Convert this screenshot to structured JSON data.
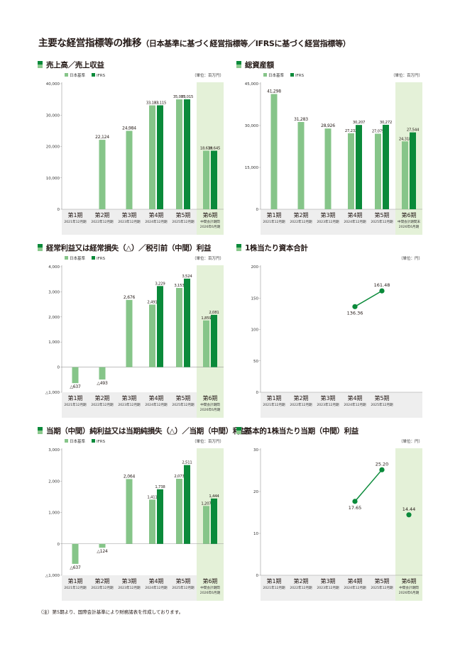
{
  "page": {
    "title": "主要な経営指標等の推移",
    "subtitle": "（日本基準に基づく経営指標等／IFRSに基づく経営指標等）",
    "footnote": "（注）第5期より、国際会計基準により財務諸表を作成しております。"
  },
  "colors": {
    "jgaap": "#86c589",
    "ifrs": "#0a8a3a",
    "forecast_bg": "#e4f1d8",
    "axis_band": "#eeeeee"
  },
  "chart_data": [
    {
      "id": "sales",
      "type": "bar",
      "title": "売上高／売上収益",
      "unit": "（単位：百万円）",
      "legend": [
        "日本基準",
        "IFRS"
      ],
      "categories": [
        {
          "label": "第1期",
          "sub": "2021年12月期"
        },
        {
          "label": "第2期",
          "sub": "2022年12月期"
        },
        {
          "label": "第3期",
          "sub": "2023年12月期"
        },
        {
          "label": "第4期",
          "sub": "2024年12月期"
        },
        {
          "label": "第5期",
          "sub": "2025年12月期"
        },
        {
          "label": "第6期",
          "sub": "中間会計期間",
          "sub2": "2026年6月期"
        }
      ],
      "series": [
        {
          "name": "日本基準",
          "values": [
            null,
            22124,
            24984,
            33103,
            35003,
            18639
          ]
        },
        {
          "name": "IFRS",
          "values": [
            null,
            null,
            null,
            33115,
            35015,
            18645
          ]
        }
      ],
      "value_labels": [
        [
          null,
          "22,124",
          "24,984",
          "33,103",
          "35,003",
          "18,639"
        ],
        [
          null,
          null,
          null,
          "33,115",
          "35,015",
          "18,645"
        ]
      ],
      "yticks": [
        0,
        10000,
        20000,
        30000,
        40000
      ],
      "ytick_labels": [
        "0",
        "10,000",
        "20,000",
        "30,000",
        "40,000"
      ],
      "ylim": [
        0,
        40000
      ],
      "forecast_index": 5
    },
    {
      "id": "assets",
      "type": "bar",
      "title": "総資産額",
      "unit": "（単位：百万円）",
      "legend": [
        "日本基準",
        "IFRS"
      ],
      "categories": [
        {
          "label": "第1期",
          "sub": "2021年12月期"
        },
        {
          "label": "第2期",
          "sub": "2022年12月期"
        },
        {
          "label": "第3期",
          "sub": "2023年12月期"
        },
        {
          "label": "第4期",
          "sub": "2024年12月期"
        },
        {
          "label": "第5期",
          "sub": "2025年12月期"
        },
        {
          "label": "第6期",
          "sub": "中間会計期間末",
          "sub2": "2026年6月期"
        }
      ],
      "series": [
        {
          "name": "日本基準",
          "values": [
            41298,
            31283,
            28926,
            27232,
            27075,
            24318
          ]
        },
        {
          "name": "IFRS",
          "values": [
            null,
            null,
            null,
            30207,
            30272,
            27544
          ]
        }
      ],
      "value_labels": [
        [
          "41,298",
          "31,283",
          "28,926",
          "27,232",
          "27,075",
          "24,318"
        ],
        [
          null,
          null,
          null,
          "30,207",
          "30,272",
          "27,544"
        ]
      ],
      "yticks": [
        0,
        15000,
        30000,
        45000
      ],
      "ytick_labels": [
        "0",
        "15,000",
        "30,000",
        "45,000"
      ],
      "ylim": [
        0,
        45000
      ],
      "forecast_index": 5
    },
    {
      "id": "ordinary",
      "type": "bar",
      "title": "経常利益又は経常損失（△）／税引前（中間）利益",
      "unit": "（単位：百万円）",
      "legend": [
        "日本基準",
        "IFRS"
      ],
      "categories": [
        {
          "label": "第1期",
          "sub": "2021年12月期"
        },
        {
          "label": "第2期",
          "sub": "2022年12月期"
        },
        {
          "label": "第3期",
          "sub": "2023年12月期"
        },
        {
          "label": "第4期",
          "sub": "2024年12月期"
        },
        {
          "label": "第5期",
          "sub": "2025年12月期"
        },
        {
          "label": "第6期",
          "sub": "中間会計期間",
          "sub2": "2026年6月期"
        }
      ],
      "series": [
        {
          "name": "日本基準",
          "values": [
            -637,
            -493,
            2676,
            2491,
            3153,
            1859
          ]
        },
        {
          "name": "IFRS",
          "values": [
            null,
            null,
            null,
            3229,
            3524,
            2081
          ]
        }
      ],
      "value_labels": [
        [
          "△637",
          "△493",
          "2,676",
          "2,491",
          "3,153",
          "1,859"
        ],
        [
          null,
          null,
          null,
          "3,229",
          "3,524",
          "2,081"
        ]
      ],
      "yticks": [
        -1000,
        0,
        1000,
        2000,
        3000,
        4000
      ],
      "ytick_labels": [
        "△1,000",
        "0",
        "1,000",
        "2,000",
        "3,000",
        "4,000"
      ],
      "ylim": [
        -1000,
        4000
      ],
      "forecast_index": 5
    },
    {
      "id": "bps",
      "type": "line",
      "title": "1株当たり資本合計",
      "unit": "（単位：円）",
      "categories": [
        {
          "label": "第1期",
          "sub": "2021年12月期"
        },
        {
          "label": "第2期",
          "sub": "2022年12月期"
        },
        {
          "label": "第3期",
          "sub": "2023年12月期"
        },
        {
          "label": "第4期",
          "sub": "2024年12月期"
        },
        {
          "label": "第5期",
          "sub": "2025年12月期"
        }
      ],
      "series": [
        {
          "values": [
            null,
            null,
            null,
            136.36,
            161.48
          ]
        }
      ],
      "value_labels": [
        [
          null,
          null,
          null,
          "136.36",
          "161.48"
        ]
      ],
      "label_pos": [
        "below",
        "below",
        "below",
        "below",
        "above"
      ],
      "yticks": [
        0,
        50,
        100,
        150,
        200
      ],
      "ytick_labels": [
        "0",
        "50",
        "100",
        "150",
        "200"
      ],
      "ylim": [
        0,
        200
      ],
      "forecast_index": null
    },
    {
      "id": "netincome",
      "type": "bar",
      "title": "当期（中間）純利益又は当期純損失（△）／当期（中間）利益",
      "unit": "（単位：百万円）",
      "legend": [
        "日本基準",
        "IFRS"
      ],
      "categories": [
        {
          "label": "第1期",
          "sub": "2021年12月期"
        },
        {
          "label": "第2期",
          "sub": "2022年12月期"
        },
        {
          "label": "第3期",
          "sub": "2023年12月期"
        },
        {
          "label": "第4期",
          "sub": "2024年12月期"
        },
        {
          "label": "第5期",
          "sub": "2025年12月期"
        },
        {
          "label": "第6期",
          "sub": "中間会計期間",
          "sub2": "2026年6月期"
        }
      ],
      "series": [
        {
          "name": "日本基準",
          "values": [
            -637,
            -124,
            2064,
            1411,
            2073,
            1207
          ]
        },
        {
          "name": "IFRS",
          "values": [
            null,
            null,
            null,
            1738,
            2511,
            1444
          ]
        }
      ],
      "value_labels": [
        [
          "△637",
          "△124",
          "2,064",
          "1,411",
          "2,073",
          "1,207"
        ],
        [
          null,
          null,
          null,
          "1,738",
          "2,511",
          "1,444"
        ]
      ],
      "yticks": [
        -1000,
        0,
        1000,
        2000,
        3000
      ],
      "ytick_labels": [
        "△1,000",
        "0",
        "1,000",
        "2,000",
        "3,000"
      ],
      "ylim": [
        -1000,
        3000
      ],
      "forecast_index": 5
    },
    {
      "id": "eps",
      "type": "line",
      "title": "基本的1株当たり当期（中間）利益",
      "unit": "（単位：円）",
      "categories": [
        {
          "label": "第1期",
          "sub": "2021年12月期"
        },
        {
          "label": "第2期",
          "sub": "2022年12月期"
        },
        {
          "label": "第3期",
          "sub": "2023年12月期"
        },
        {
          "label": "第4期",
          "sub": "2024年12月期"
        },
        {
          "label": "第5期",
          "sub": "2025年12月期"
        },
        {
          "label": "第6期",
          "sub": "中間会計期間",
          "sub2": "2026年6月期"
        }
      ],
      "series": [
        {
          "values": [
            null,
            null,
            null,
            17.65,
            25.2,
            14.44
          ]
        }
      ],
      "connect_until": 4,
      "value_labels": [
        [
          null,
          null,
          null,
          "17.65",
          "25.20",
          "14.44"
        ]
      ],
      "label_pos": [
        "below",
        "below",
        "below",
        "below",
        "above",
        "above"
      ],
      "yticks": [
        0,
        10,
        20,
        30
      ],
      "ytick_labels": [
        "0",
        "10",
        "20",
        "30"
      ],
      "ylim": [
        0,
        30
      ],
      "forecast_index": 5
    }
  ]
}
